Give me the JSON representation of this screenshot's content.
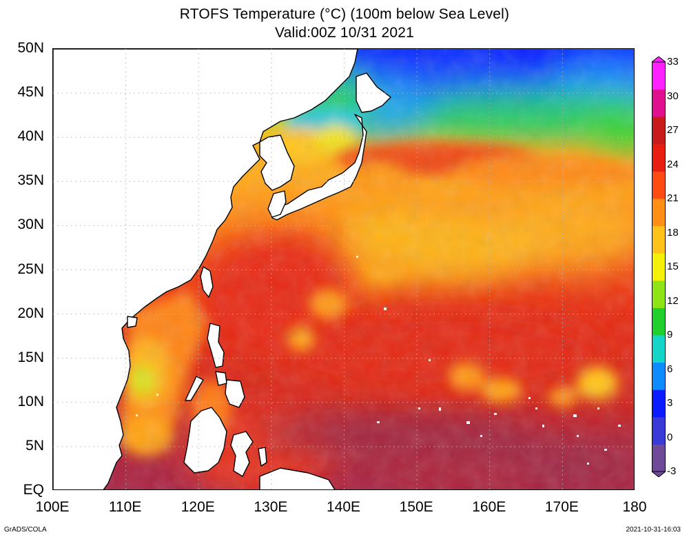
{
  "title": {
    "line1": "RTOFS Temperature (°C) (100m below Sea Level)",
    "line2": "Valid:00Z 10/31 2021"
  },
  "map": {
    "lat_labels": [
      "50N",
      "45N",
      "40N",
      "35N",
      "30N",
      "25N",
      "20N",
      "15N",
      "10N",
      "5N",
      "EQ"
    ],
    "lon_labels": [
      "100E",
      "110E",
      "120E",
      "130E",
      "140E",
      "150E",
      "160E",
      "170E",
      "180"
    ],
    "lat_range": [
      0,
      50
    ],
    "lon_range": [
      100,
      180
    ],
    "grid": "dotted",
    "land_color": "#ffffff",
    "coastline_color": "#000000",
    "field": "Temperature (°C), 100m below sea level"
  },
  "colorbar": {
    "ticks": [
      "33",
      "30",
      "27",
      "24",
      "21",
      "18",
      "15",
      "12",
      "9",
      "6",
      "3",
      "0",
      "-3"
    ],
    "range": [
      -3,
      33
    ],
    "colors": [
      "#6e4a98",
      "#3a3ad6",
      "#0a1cff",
      "#0e8cff",
      "#14d6c8",
      "#20d02c",
      "#8ee414",
      "#f4f00a",
      "#ffc21a",
      "#ff8e14",
      "#ff4a14",
      "#e81e10",
      "#c81c1c",
      "#e0108e",
      "#ff22ff"
    ]
  },
  "footer": {
    "left": "GrADS/COLA",
    "right": "2021-10-31-16:03"
  }
}
